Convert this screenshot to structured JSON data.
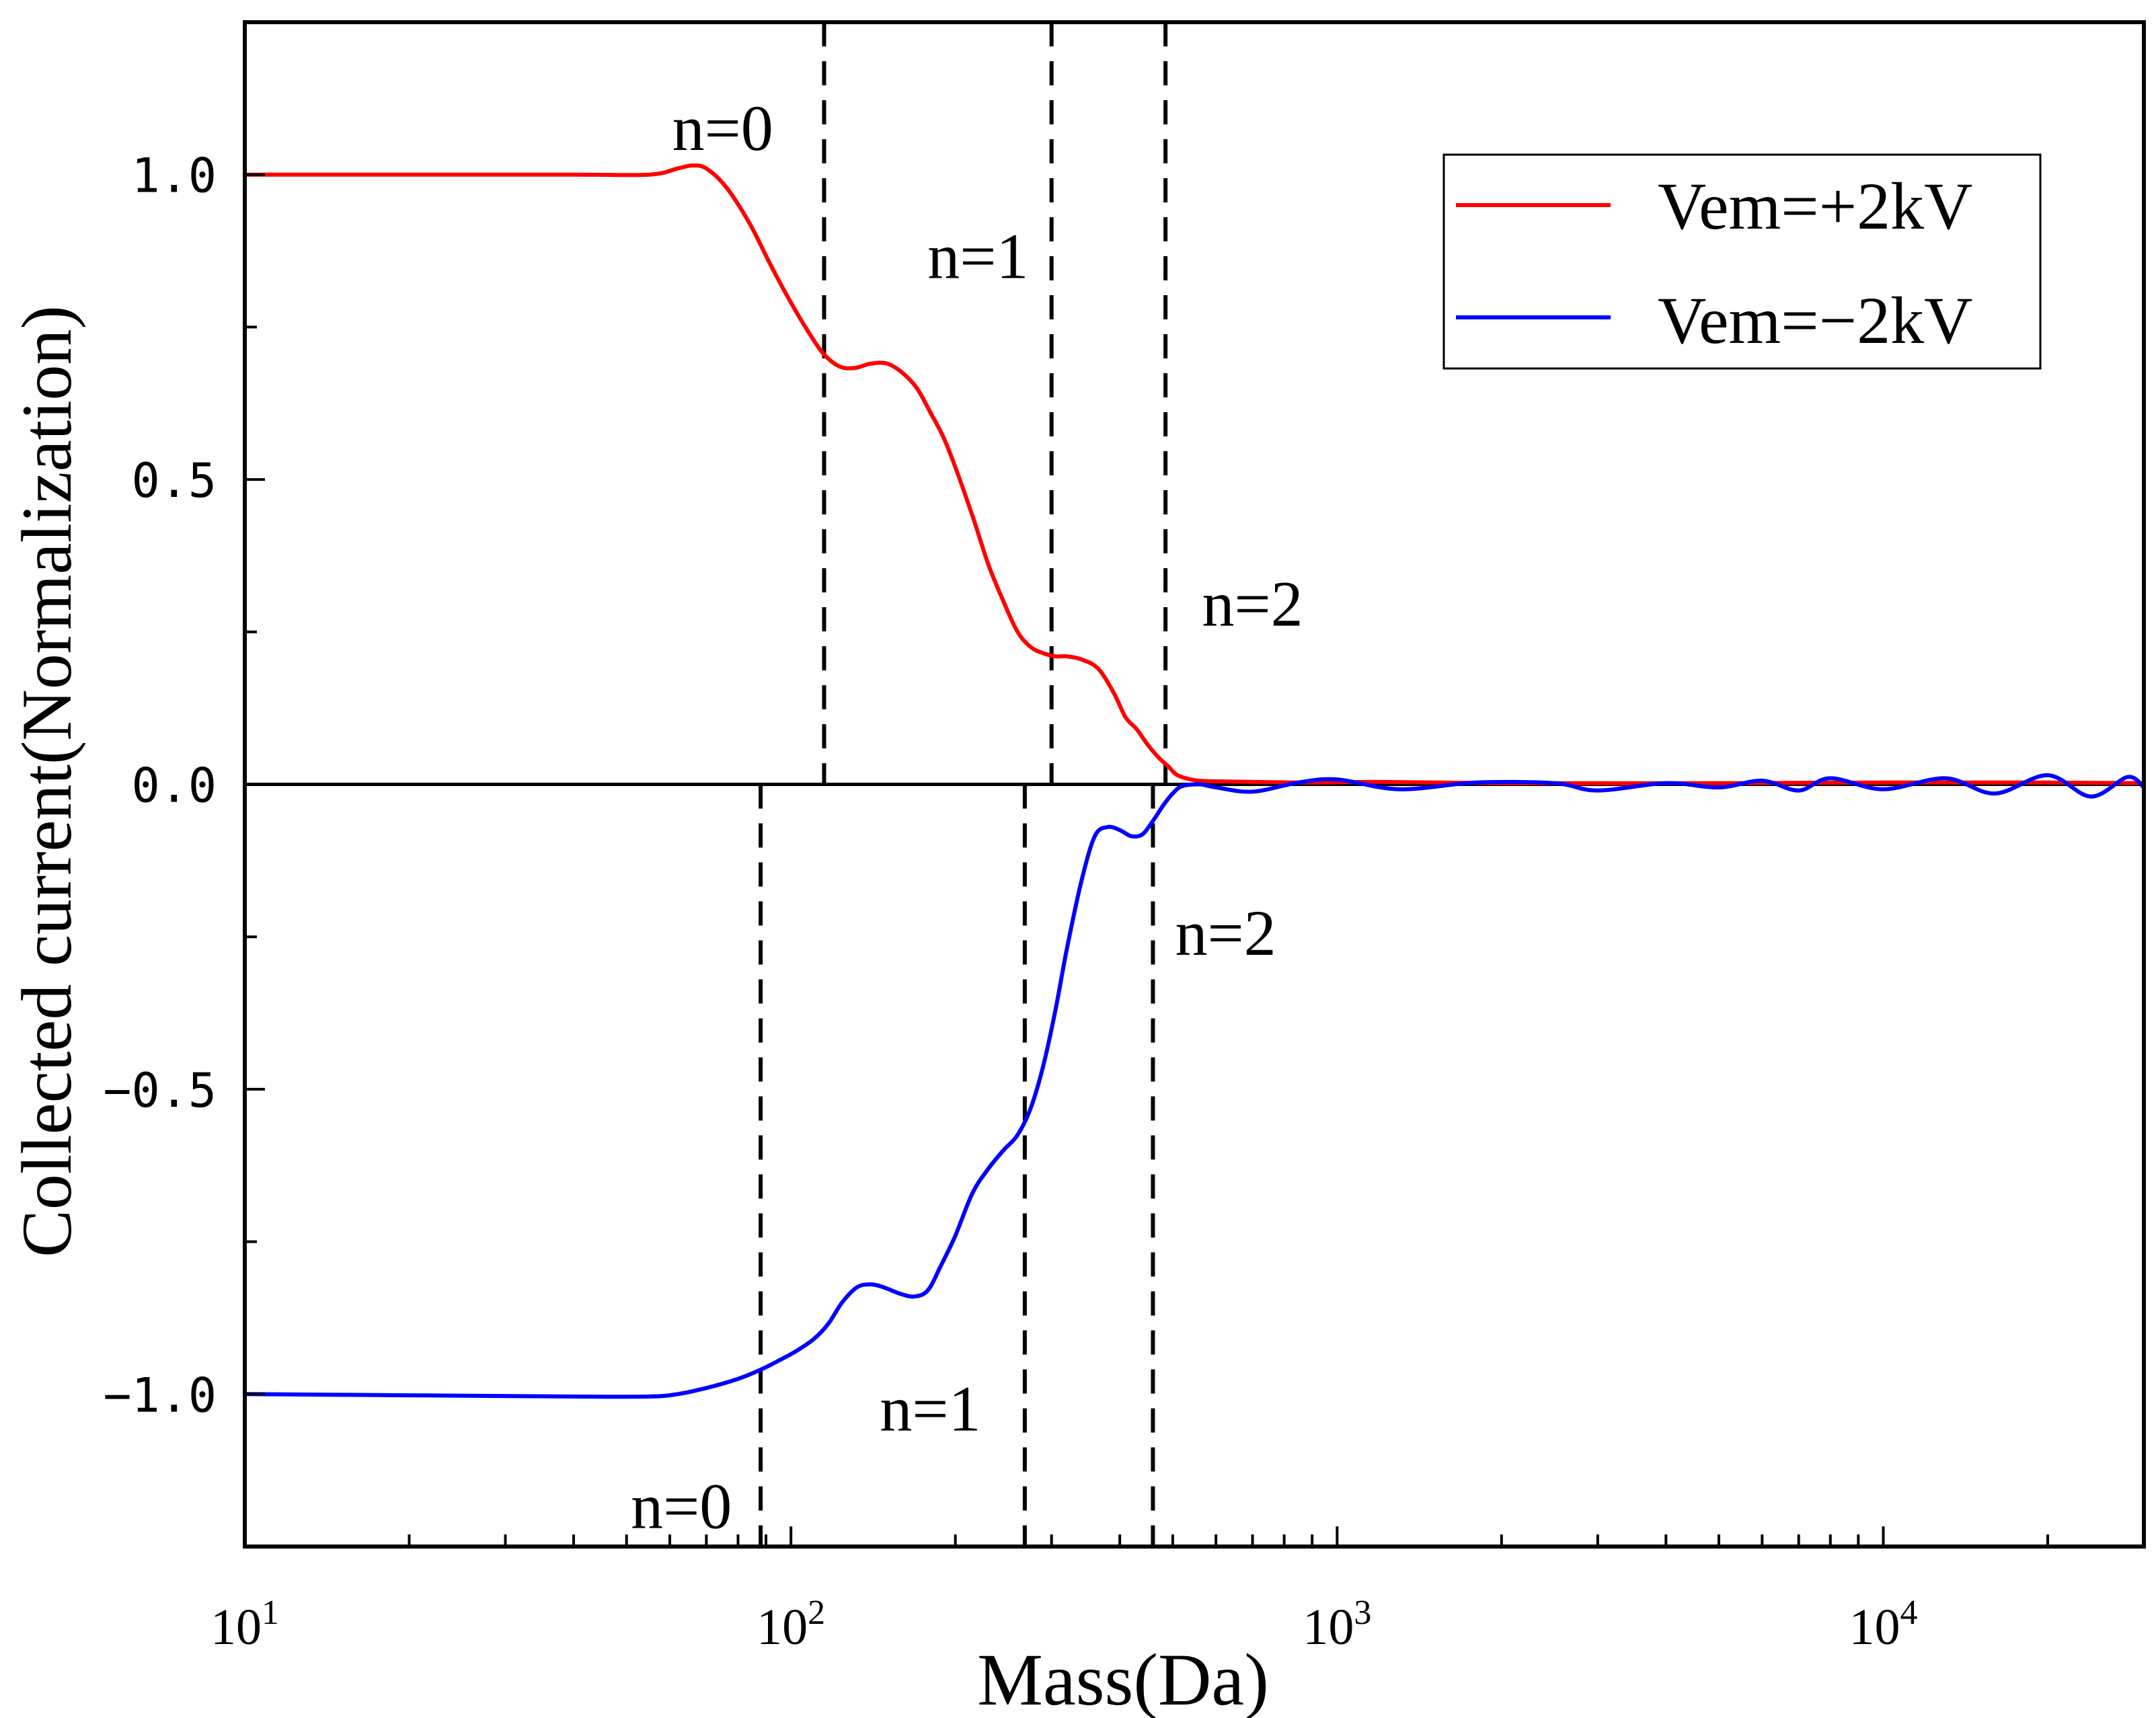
{
  "chart_data": {
    "type": "line",
    "title": "",
    "xlabel": "Mass(Da)",
    "ylabel": "Collected current(Normalization)",
    "xscale": "log",
    "xlim": [
      10,
      30000
    ],
    "ylim": [
      -1.25,
      1.25
    ],
    "x_ticks": [
      {
        "value": 10,
        "base": "10",
        "exp": "1"
      },
      {
        "value": 100,
        "base": "10",
        "exp": "2"
      },
      {
        "value": 1000,
        "base": "10",
        "exp": "3"
      },
      {
        "value": 10000,
        "base": "10",
        "exp": "4"
      }
    ],
    "y_ticks": [
      {
        "value": 1.0,
        "label": "1.0"
      },
      {
        "value": 0.5,
        "label": "0.5"
      },
      {
        "value": 0.0,
        "label": "0.0"
      },
      {
        "value": -0.5,
        "label": "−0.5"
      },
      {
        "value": -1.0,
        "label": "−1.0"
      }
    ],
    "grid": false,
    "legend_position": "top-right",
    "series": [
      {
        "name": "Vem=+2kV",
        "color": "#ff0000",
        "x": [
          10,
          20,
          40,
          55,
          62,
          66,
          70,
          76,
          84,
          92,
          100,
          108,
          115,
          123,
          131,
          140,
          150,
          160,
          170,
          180,
          190,
          200,
          215,
          230,
          245,
          260,
          275,
          290,
          305,
          320,
          340,
          365,
          390,
          410,
          430,
          450,
          470,
          490,
          510,
          540,
          560,
          600,
          700,
          900,
          1200,
          2000,
          5000,
          10000,
          20000,
          30000
        ],
        "values": [
          1.0,
          1.0,
          1.0,
          1.0,
          1.01,
          1.015,
          1.01,
          0.98,
          0.92,
          0.85,
          0.79,
          0.74,
          0.705,
          0.685,
          0.683,
          0.69,
          0.69,
          0.675,
          0.65,
          0.61,
          0.57,
          0.52,
          0.44,
          0.36,
          0.3,
          0.25,
          0.225,
          0.215,
          0.21,
          0.21,
          0.205,
          0.19,
          0.15,
          0.11,
          0.09,
          0.065,
          0.045,
          0.03,
          0.015,
          0.008,
          0.006,
          0.005,
          0.004,
          0.003,
          0.004,
          0.002,
          0.002,
          0.003,
          0.003,
          0.002
        ]
      },
      {
        "name": "Vem=−2kV",
        "color": "#0000ff",
        "x": [
          10,
          20,
          40,
          55,
          62,
          70,
          80,
          88,
          95,
          102,
          110,
          117,
          124,
          132,
          140,
          148,
          158,
          168,
          178,
          188,
          200,
          215,
          230,
          245,
          260,
          275,
          290,
          305,
          320,
          340,
          360,
          380,
          400,
          420,
          440,
          460,
          480,
          500,
          520,
          560,
          600,
          700,
          850,
          1000,
          1300,
          1800,
          2500,
          3000,
          4000,
          5000,
          6000,
          7000,
          8000,
          10000,
          13000,
          16000,
          20000,
          24000,
          28000,
          30000
        ],
        "values": [
          -1.0,
          -1.002,
          -1.004,
          -1.004,
          -1.0,
          -0.99,
          -0.975,
          -0.96,
          -0.945,
          -0.93,
          -0.91,
          -0.885,
          -0.85,
          -0.825,
          -0.82,
          -0.825,
          -0.835,
          -0.84,
          -0.83,
          -0.79,
          -0.74,
          -0.67,
          -0.63,
          -0.6,
          -0.575,
          -0.53,
          -0.46,
          -0.37,
          -0.27,
          -0.16,
          -0.085,
          -0.07,
          -0.075,
          -0.085,
          -0.082,
          -0.06,
          -0.035,
          -0.015,
          -0.003,
          0.0,
          -0.005,
          -0.012,
          0.003,
          0.008,
          -0.008,
          0.003,
          0.002,
          -0.01,
          0.002,
          -0.005,
          0.006,
          -0.01,
          0.01,
          -0.008,
          0.01,
          -0.015,
          0.015,
          -0.02,
          0.012,
          -0.005
        ]
      }
    ],
    "vlines_upper": [
      115,
      300,
      485
    ],
    "vlines_lower": [
      88,
      268,
      460
    ],
    "annotations": [
      {
        "text": "n=0",
        "x": 75,
        "y": 1.08
      },
      {
        "text": "n=1",
        "x": 220,
        "y": 0.87
      },
      {
        "text": "n=2",
        "x": 700,
        "y": 0.3
      },
      {
        "text": "n=0",
        "x": 63,
        "y": -1.18
      },
      {
        "text": "n=1",
        "x": 180,
        "y": -1.02
      },
      {
        "text": "n=2",
        "x": 625,
        "y": -0.24
      }
    ]
  }
}
